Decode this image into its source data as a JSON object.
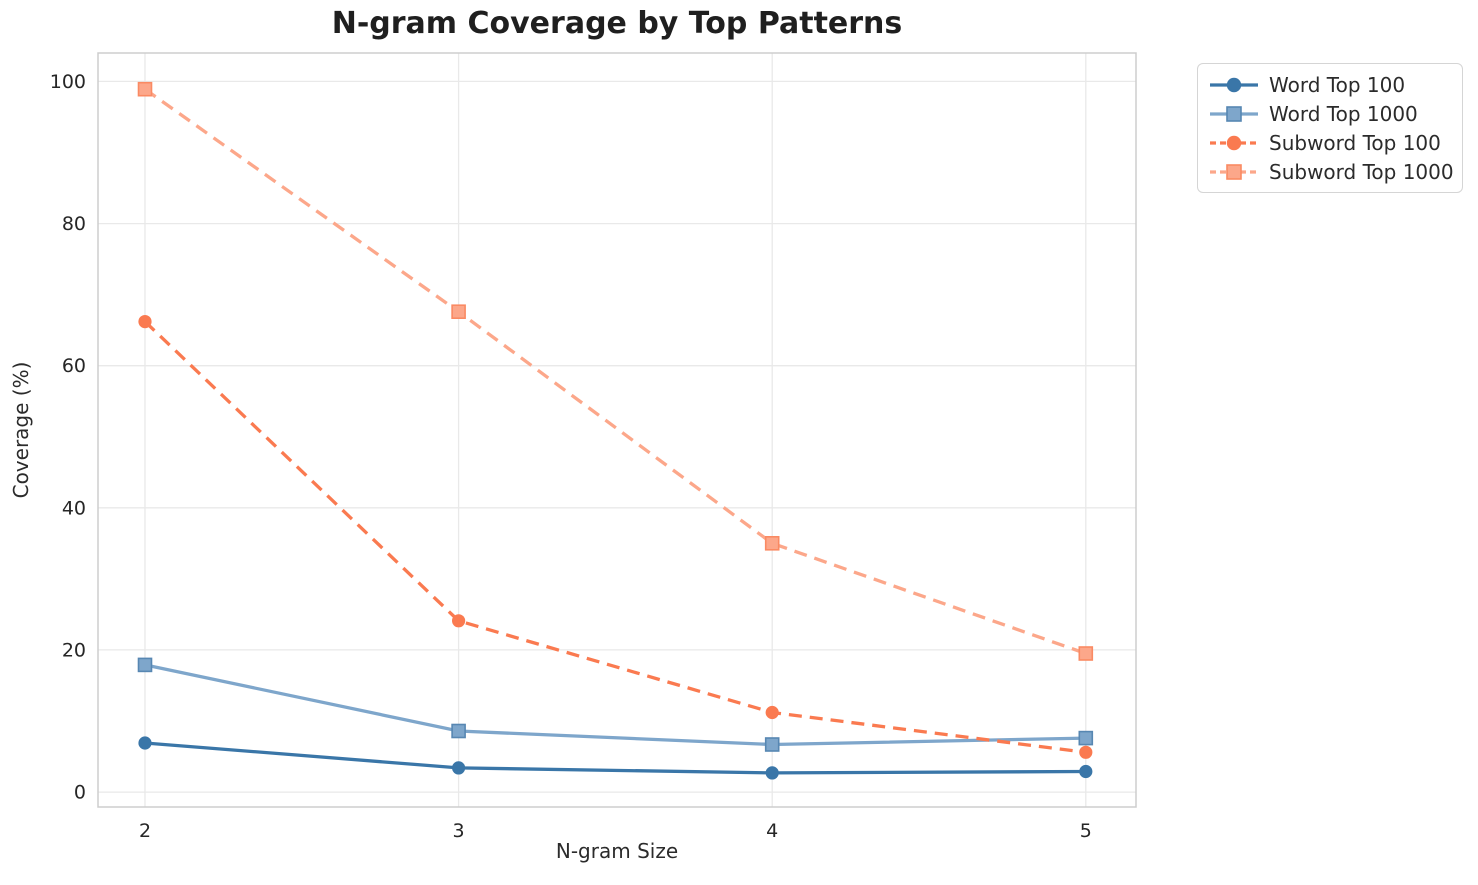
{
  "chart_data": {
    "type": "line",
    "title": "N-gram Coverage by Top Patterns",
    "xlabel": "N-gram Size",
    "ylabel": "Coverage (%)",
    "x": [
      2,
      3,
      4,
      5
    ],
    "series": [
      {
        "name": "Word Top 100",
        "values": [
          6.9,
          3.4,
          2.7,
          2.9
        ],
        "color": "#3a76a8",
        "line_style": "solid",
        "marker": "circle"
      },
      {
        "name": "Word Top 1000",
        "values": [
          17.9,
          8.6,
          6.7,
          7.6
        ],
        "color": "#7ea6cb",
        "marker_edge": "#5787b2",
        "line_style": "solid",
        "marker": "square"
      },
      {
        "name": "Subword Top 100",
        "values": [
          66.2,
          24.1,
          11.2,
          5.6
        ],
        "color": "#fa7a50",
        "line_style": "dashed",
        "marker": "circle"
      },
      {
        "name": "Subword Top 1000",
        "values": [
          98.9,
          67.6,
          35.0,
          19.5
        ],
        "color": "#fca78a",
        "marker_edge": "#fa8a63",
        "line_style": "dashed",
        "marker": "square"
      }
    ],
    "x_ticks": [
      2,
      3,
      4,
      5
    ],
    "y_ticks": [
      0,
      20,
      40,
      60,
      80,
      100
    ],
    "xlim": [
      1.85,
      5.16
    ],
    "ylim": [
      -2.1,
      104
    ],
    "grid": true,
    "legend_position": "outside upper right"
  }
}
